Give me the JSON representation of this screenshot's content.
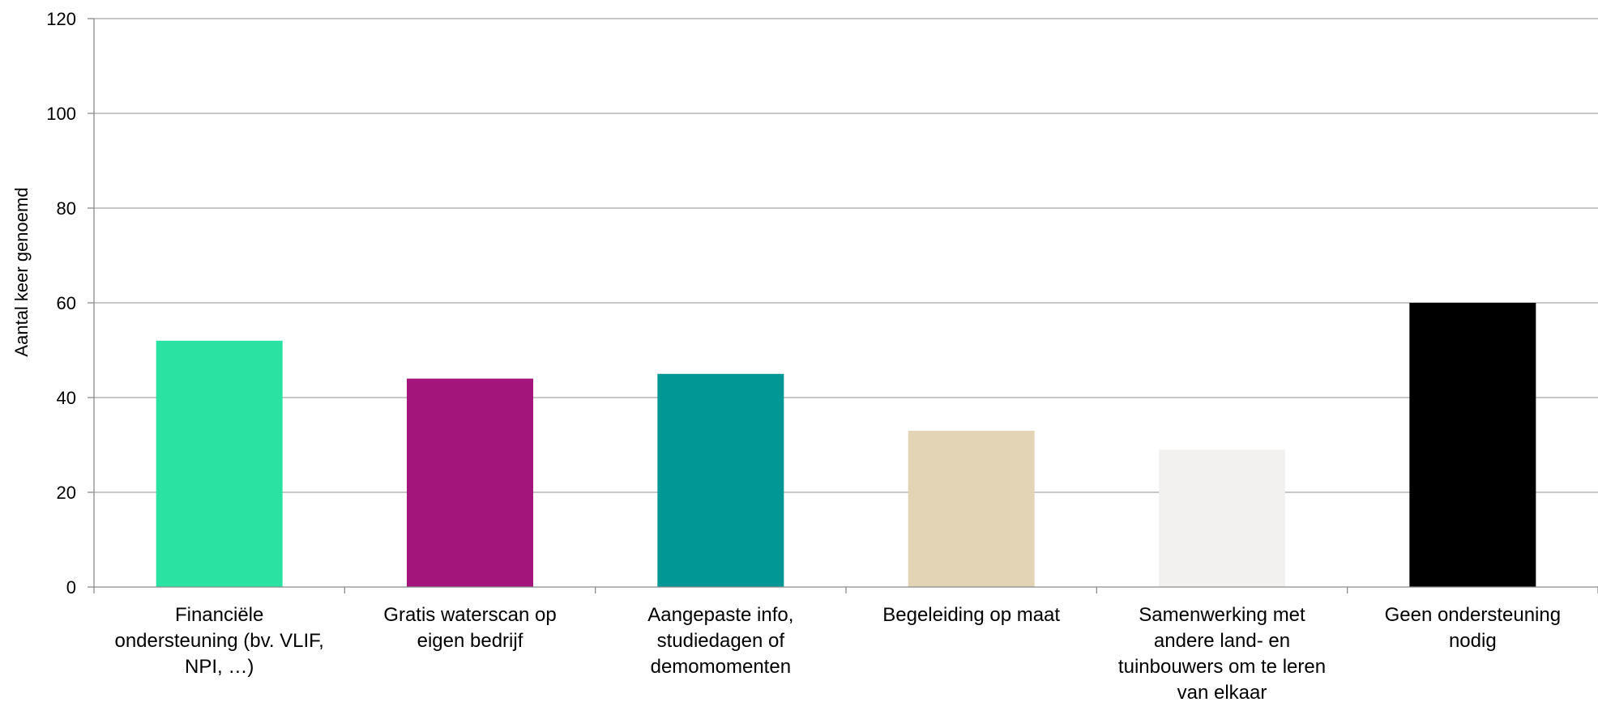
{
  "chart_data": {
    "type": "bar",
    "title": "",
    "xlabel": "",
    "ylabel": "Aantal keer genoemd",
    "ylim": [
      0,
      120
    ],
    "yticks": [
      0,
      20,
      40,
      60,
      80,
      100,
      120
    ],
    "grid": true,
    "legend": "none",
    "categories": [
      [
        "Financiële",
        "ondersteuning (bv. VLIF,",
        "NPI, …)"
      ],
      [
        "Gratis waterscan op",
        "eigen bedrijf"
      ],
      [
        "Aangepaste info,",
        "studiedagen of",
        "demomomenten"
      ],
      [
        "Begeleiding op maat"
      ],
      [
        "Samenwerking met",
        "andere land- en",
        "tuinbouwers om te leren",
        "van elkaar"
      ],
      [
        "Geen ondersteuning",
        "nodig"
      ]
    ],
    "values": [
      52,
      44,
      45,
      33,
      29,
      60
    ],
    "colors": [
      "#2ae2a2",
      "#a3157a",
      "#009794",
      "#e3d4b5",
      "#f3f0f0",
      "#000000"
    ],
    "grid_color": "#a6a6a6",
    "axis_color": "#8c8c8c"
  }
}
